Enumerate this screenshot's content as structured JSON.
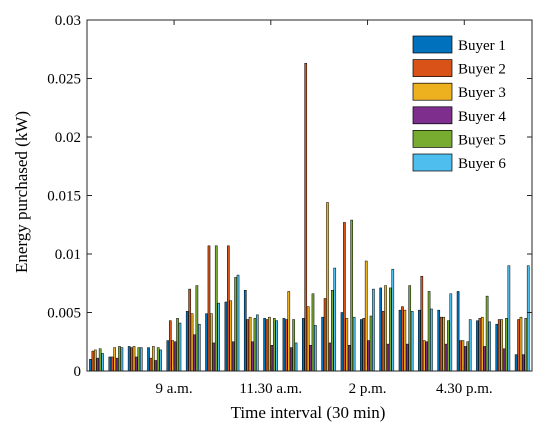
{
  "chart_data": {
    "type": "bar",
    "xlabel": "Time interval (30 min)",
    "ylabel": "Energy purchased (kW)",
    "ylim": [
      0,
      0.03
    ],
    "yticks": [
      "0",
      "0.005",
      "0.01",
      "0.015",
      "0.02",
      "0.025",
      "0.03"
    ],
    "xtick_labels": [
      "9 a.m.",
      "11.30 a.m.",
      "2 p.m.",
      "4.30 p.m."
    ],
    "xtick_positions": [
      5,
      10,
      15,
      20
    ],
    "n_intervals": 23,
    "legend_position": "top-right",
    "series": [
      {
        "name": "Buyer 1",
        "color": "#0072BD",
        "values": [
          0.001,
          0.0012,
          0.0021,
          0.002,
          0.0026,
          0.0051,
          0.0049,
          0.0059,
          0.0069,
          0.0045,
          0.0045,
          0.0045,
          0.0046,
          0.005,
          0.0044,
          0.0071,
          0.0052,
          0.0052,
          0.0052,
          0.0068,
          0.0043,
          0.004,
          0.0014
        ]
      },
      {
        "name": "Buyer 2",
        "color": "#D95319",
        "values": [
          0.0017,
          0.0012,
          0.002,
          0.0011,
          0.0043,
          0.007,
          0.0107,
          0.0107,
          0.0044,
          0.0044,
          0.0044,
          0.0263,
          0.0062,
          0.0127,
          0.0045,
          0.0051,
          0.0055,
          0.0081,
          0.0046,
          0.0026,
          0.0045,
          0.0044,
          0.0044
        ]
      },
      {
        "name": "Buyer 3",
        "color": "#EDB120",
        "values": [
          0.0018,
          0.002,
          0.0021,
          0.0021,
          0.0026,
          0.0049,
          0.0049,
          0.006,
          0.0046,
          0.0046,
          0.0068,
          0.0055,
          0.0144,
          0.0045,
          0.0094,
          0.0073,
          0.0052,
          0.0026,
          0.0046,
          0.0026,
          0.0046,
          0.0044,
          0.0046
        ]
      },
      {
        "name": "Buyer 4",
        "color": "#7E2F8E",
        "values": [
          0.0011,
          0.0011,
          0.0012,
          0.0009,
          0.0025,
          0.0031,
          0.0024,
          0.0025,
          0.0025,
          0.0022,
          0.002,
          0.0022,
          0.0024,
          0.0022,
          0.0026,
          0.0023,
          0.0023,
          0.0025,
          0.0023,
          0.0021,
          0.0021,
          0.0019,
          0.0014
        ]
      },
      {
        "name": "Buyer 5",
        "color": "#77AC30",
        "values": [
          0.0019,
          0.0021,
          0.002,
          0.002,
          0.0045,
          0.0073,
          0.0107,
          0.008,
          0.0045,
          0.0045,
          0.0044,
          0.0066,
          0.0069,
          0.0129,
          0.0047,
          0.0071,
          0.0073,
          0.0068,
          0.0043,
          0.0025,
          0.0064,
          0.0045,
          0.0045
        ]
      },
      {
        "name": "Buyer 6",
        "color": "#4DBEEE",
        "values": [
          0.0015,
          0.002,
          0.002,
          0.0018,
          0.0041,
          0.004,
          0.0058,
          0.0082,
          0.0048,
          0.0043,
          0.0024,
          0.0039,
          0.0088,
          0.0046,
          0.007,
          0.0087,
          0.0051,
          0.0053,
          0.0066,
          0.0044,
          0.0042,
          0.009,
          0.009
        ]
      }
    ]
  }
}
